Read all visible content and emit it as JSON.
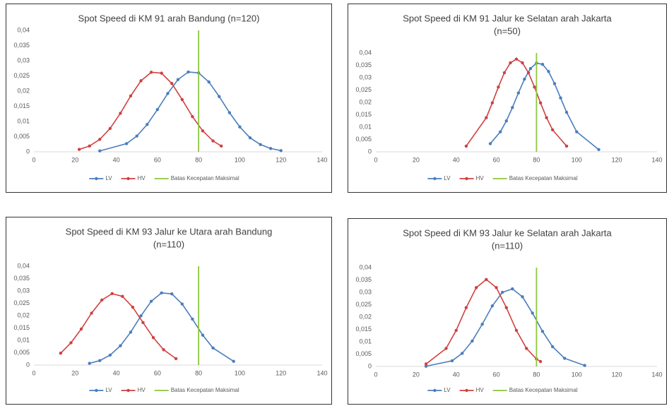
{
  "chart_data": [
    {
      "type": "line",
      "title": "Spot Speed di KM 91 arah Bandung (n=120)",
      "xlim": [
        0,
        140
      ],
      "xticks": [
        0,
        20,
        40,
        60,
        80,
        100,
        120,
        140
      ],
      "ylim": [
        0,
        0.04
      ],
      "yticks": [
        0,
        {
          "value": 0.005,
          "label": "0,005"
        },
        {
          "value": 0.01,
          "label": "0,01"
        },
        {
          "value": 0.015,
          "label": "0,015"
        },
        {
          "value": 0.02,
          "label": "0,02"
        },
        {
          "value": 0.025,
          "label": "0,025"
        },
        {
          "value": 0.03,
          "label": "0,03"
        },
        {
          "value": 0.035,
          "label": "0,035"
        },
        {
          "value": 0.04,
          "label": "0,04"
        }
      ],
      "series": [
        {
          "name": "LV",
          "color": "#4a7ebb",
          "marker": "circle",
          "x": [
            32,
            45,
            50,
            55,
            60,
            65,
            70,
            75,
            80,
            85,
            90,
            95,
            100,
            105,
            110,
            115,
            120
          ],
          "values": [
            0.0003,
            0.0027,
            0.0052,
            0.009,
            0.0139,
            0.0192,
            0.0238,
            0.0263,
            0.026,
            0.023,
            0.0182,
            0.0129,
            0.0082,
            0.0046,
            0.0024,
            0.0011,
            0.0004
          ]
        },
        {
          "name": "HV",
          "color": "#d0403f",
          "marker": "circle",
          "x": [
            22,
            27,
            32,
            37,
            42,
            47,
            52,
            57,
            62,
            67,
            72,
            77,
            82,
            87,
            91
          ],
          "values": [
            0.0008,
            0.0019,
            0.0041,
            0.0077,
            0.0127,
            0.0184,
            0.0234,
            0.0262,
            0.0259,
            0.0225,
            0.0172,
            0.0116,
            0.0069,
            0.0036,
            0.0019
          ]
        },
        {
          "name": "Batas Kecepatan Maksimal",
          "color": "#8dc63f",
          "x": [
            80,
            80
          ],
          "values": [
            0,
            0.04
          ]
        }
      ]
    },
    {
      "type": "line",
      "title": "Spot Speed di KM 91  Jalur ke Selatan arah Jakarta",
      "subtitle": "(n=50)",
      "xlim": [
        0,
        140
      ],
      "xticks": [
        0,
        20,
        40,
        60,
        80,
        100,
        120,
        140
      ],
      "ylim": [
        0,
        0.04
      ],
      "yticks": [
        0,
        {
          "value": 0.005,
          "label": "0,005"
        },
        {
          "value": 0.01,
          "label": "0,01"
        },
        {
          "value": 0.015,
          "label": "0,015"
        },
        {
          "value": 0.02,
          "label": "0,02"
        },
        {
          "value": 0.025,
          "label": "0,025"
        },
        {
          "value": 0.03,
          "label": "0,03"
        },
        {
          "value": 0.035,
          "label": "0,035"
        },
        {
          "value": 0.04,
          "label": "0,04"
        }
      ],
      "series": [
        {
          "name": "LV",
          "color": "#4a7ebb",
          "marker": "circle",
          "x": [
            57,
            62,
            65,
            68,
            71,
            74,
            77,
            80,
            83,
            86,
            89,
            92,
            95,
            100,
            111
          ],
          "values": [
            0.0033,
            0.0081,
            0.0125,
            0.0179,
            0.0238,
            0.0294,
            0.0337,
            0.0359,
            0.0354,
            0.0325,
            0.0276,
            0.0218,
            0.016,
            0.0081,
            0.0009
          ]
        },
        {
          "name": "HV",
          "color": "#d0403f",
          "marker": "circle",
          "x": [
            45,
            55,
            58,
            61,
            64,
            67,
            70,
            73,
            76,
            79,
            82,
            85,
            88,
            95
          ],
          "values": [
            0.0023,
            0.0138,
            0.0198,
            0.0262,
            0.032,
            0.036,
            0.0375,
            0.036,
            0.032,
            0.0262,
            0.0198,
            0.0138,
            0.0089,
            0.0023
          ]
        },
        {
          "name": "Batas Kecepatan Maksimal",
          "color": "#8dc63f",
          "x": [
            80,
            80
          ],
          "values": [
            0,
            0.04
          ]
        }
      ]
    },
    {
      "type": "line",
      "title": "Spot Speed di KM 93  Jalur ke Utara arah Bandung",
      "subtitle": "(n=110)",
      "xlim": [
        0,
        140
      ],
      "xticks": [
        0,
        20,
        40,
        60,
        80,
        100,
        120,
        140
      ],
      "ylim": [
        0,
        0.04
      ],
      "yticks": [
        0,
        {
          "value": 0.005,
          "label": "0,005"
        },
        {
          "value": 0.01,
          "label": "0,01"
        },
        {
          "value": 0.015,
          "label": "0,015"
        },
        {
          "value": 0.02,
          "label": "0,02"
        },
        {
          "value": 0.025,
          "label": "0,025"
        },
        {
          "value": 0.03,
          "label": "0,03"
        },
        {
          "value": 0.035,
          "label": "0,035"
        },
        {
          "value": 0.04,
          "label": "0,04"
        }
      ],
      "series": [
        {
          "name": "LV",
          "color": "#4a7ebb",
          "marker": "circle",
          "x": [
            27,
            32,
            37,
            42,
            47,
            52,
            57,
            62,
            67,
            72,
            77,
            82,
            87,
            97
          ],
          "values": [
            0.0007,
            0.0018,
            0.004,
            0.0078,
            0.0133,
            0.0199,
            0.0258,
            0.0292,
            0.0288,
            0.0247,
            0.0186,
            0.0121,
            0.0069,
            0.0015
          ]
        },
        {
          "name": "HV",
          "color": "#d0403f",
          "marker": "circle",
          "x": [
            13,
            18,
            23,
            28,
            33,
            38,
            43,
            48,
            53,
            58,
            63,
            69
          ],
          "values": [
            0.0048,
            0.009,
            0.0146,
            0.021,
            0.0263,
            0.0289,
            0.0278,
            0.0234,
            0.0172,
            0.0111,
            0.0062,
            0.0026
          ]
        },
        {
          "name": "Batas Kecepatan Maksimal",
          "color": "#8dc63f",
          "x": [
            80,
            80
          ],
          "values": [
            0,
            0.04
          ]
        }
      ]
    },
    {
      "type": "line",
      "title": "Spot Speed di KM 93 Jalur ke Selatan arah Jakarta",
      "subtitle": "(n=110)",
      "xlim": [
        0,
        140
      ],
      "xticks": [
        0,
        20,
        40,
        60,
        80,
        100,
        120,
        140
      ],
      "ylim": [
        0,
        0.04
      ],
      "yticks": [
        0,
        {
          "value": 0.005,
          "label": "0,005"
        },
        {
          "value": 0.01,
          "label": "0,01"
        },
        {
          "value": 0.015,
          "label": "0,015"
        },
        {
          "value": 0.02,
          "label": "0,02"
        },
        {
          "value": 0.025,
          "label": "0,025"
        },
        {
          "value": 0.03,
          "label": "0,03"
        },
        {
          "value": 0.035,
          "label": "0,035"
        },
        {
          "value": 0.04,
          "label": "0,04"
        }
      ],
      "series": [
        {
          "name": "LV",
          "color": "#4a7ebb",
          "marker": "circle",
          "x": [
            25,
            38,
            43,
            48,
            53,
            58,
            63,
            68,
            73,
            78,
            83,
            88,
            94,
            104
          ],
          "values": [
            0.0001,
            0.0023,
            0.0053,
            0.0103,
            0.0171,
            0.0245,
            0.03,
            0.0314,
            0.0282,
            0.0216,
            0.0142,
            0.008,
            0.0033,
            0.0004
          ]
        },
        {
          "name": "HV",
          "color": "#d0403f",
          "marker": "circle",
          "x": [
            25,
            35,
            40,
            45,
            50,
            55,
            60,
            65,
            70,
            75,
            80,
            82
          ],
          "values": [
            0.001,
            0.0073,
            0.0146,
            0.0238,
            0.0319,
            0.0352,
            0.0319,
            0.0238,
            0.0146,
            0.0073,
            0.003,
            0.002
          ]
        },
        {
          "name": "Batas Kecepatan Maksimal",
          "color": "#8dc63f",
          "x": [
            80,
            80
          ],
          "values": [
            0,
            0.04
          ]
        }
      ]
    }
  ]
}
